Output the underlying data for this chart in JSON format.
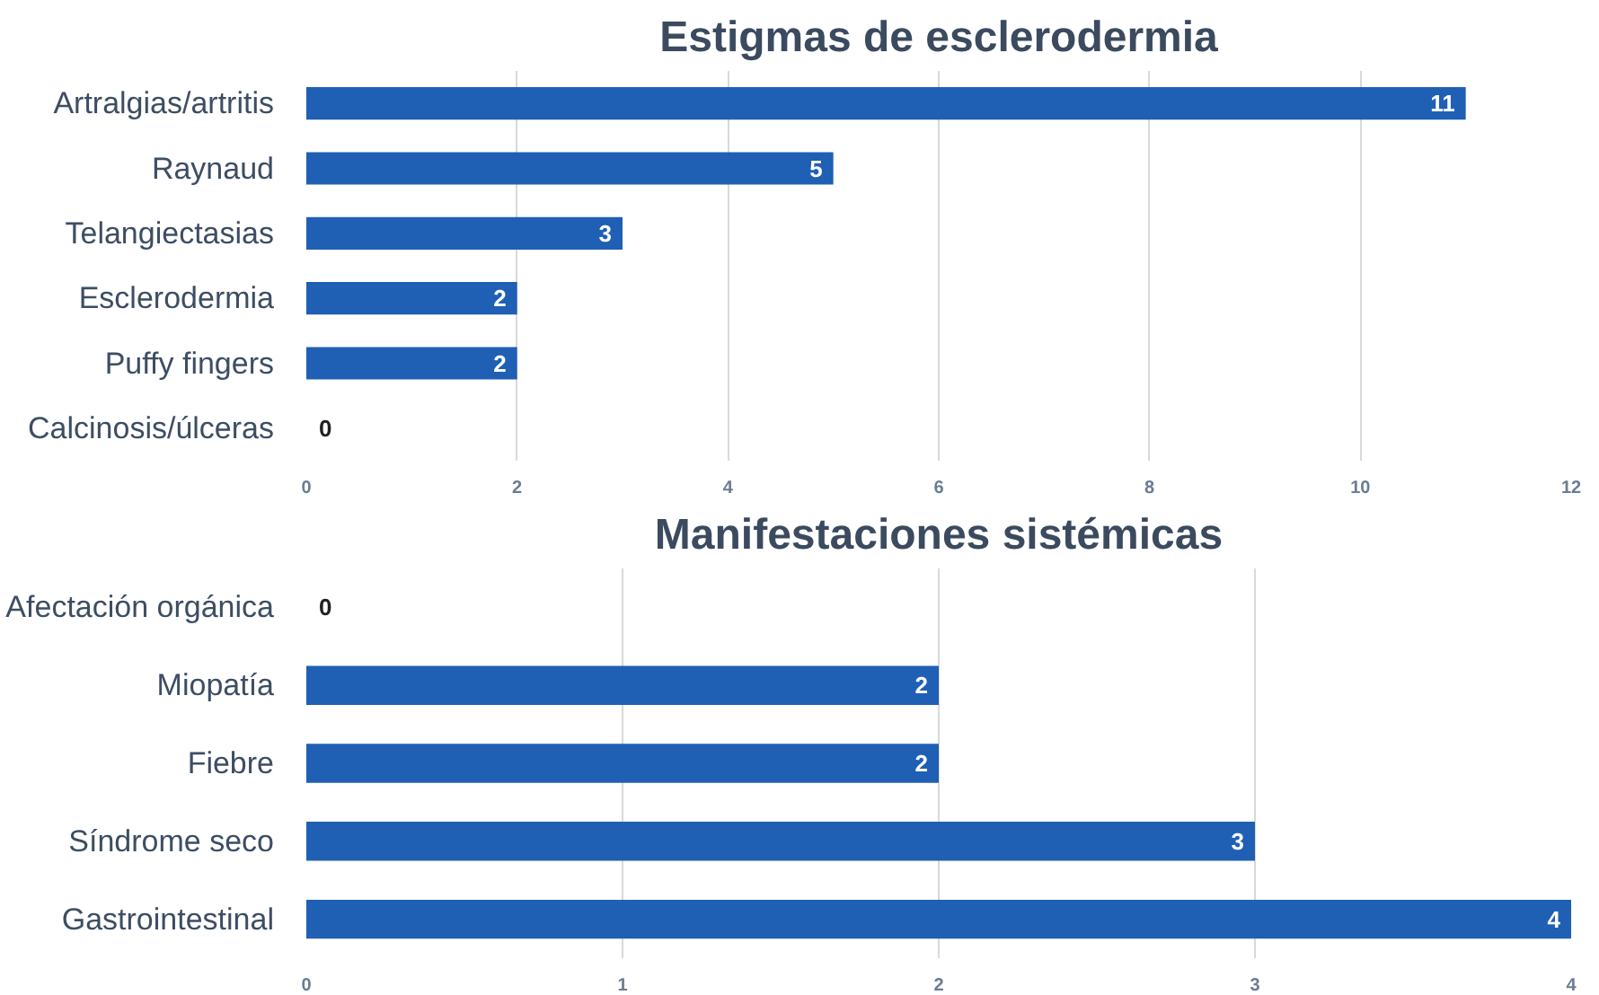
{
  "chart_data": [
    {
      "type": "bar",
      "orientation": "horizontal",
      "title": "Estigmas de esclerodermia",
      "categories": [
        "Artralgias/artritis",
        "Raynaud",
        "Telangiectasias",
        "Esclerodermia",
        "Puffy fingers",
        "Calcinosis/úlceras"
      ],
      "values": [
        11,
        5,
        3,
        2,
        2,
        0
      ],
      "color": "#1f5fb4",
      "xlim": [
        0,
        12
      ],
      "xticks": [
        0,
        2,
        4,
        6,
        8,
        10,
        12
      ],
      "grid": "x",
      "data_labels": true
    },
    {
      "type": "bar",
      "orientation": "horizontal",
      "title": "Manifestaciones sistémicas",
      "categories": [
        "Afectación orgánica",
        "Miopatía",
        "Fiebre",
        "Síndrome seco",
        "Gastrointestinal"
      ],
      "values": [
        0,
        2,
        2,
        3,
        4
      ],
      "color": "#1f5fb4",
      "xlim": [
        0,
        4
      ],
      "xticks": [
        0,
        1,
        2,
        3,
        4
      ],
      "grid": "x",
      "data_labels": true
    }
  ]
}
